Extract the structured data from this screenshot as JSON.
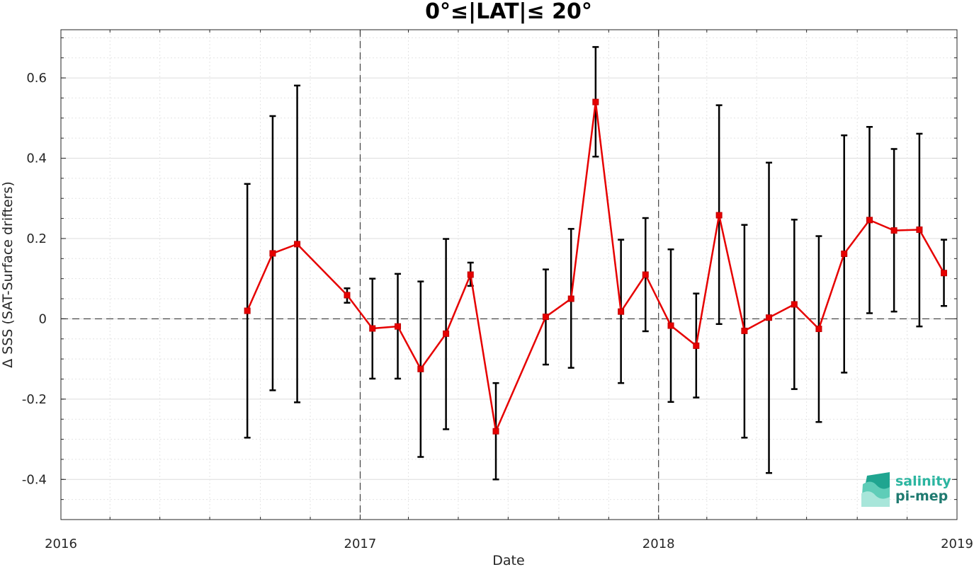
{
  "chart_data": {
    "type": "line",
    "title": "0°≤|LAT|≤ 20°",
    "xlabel": "Date",
    "ylabel": "Δ SSS (SAT-Surface drifters)",
    "xlim": [
      "2016-01-01",
      "2019-01-01"
    ],
    "ylim": [
      -0.5,
      0.72
    ],
    "x_ticks": [
      "2016",
      "2017",
      "2018",
      "2019"
    ],
    "y_ticks": [
      -0.4,
      -0.2,
      0,
      0.2,
      0.4,
      0.6
    ],
    "y_tick_labels": [
      "-0.4",
      "-0.2",
      "0",
      "0.2",
      "0.4",
      "0.6"
    ],
    "grid": true,
    "reference_lines": {
      "horizontal_dashed_at": 0,
      "vertical_dashed_at": [
        "2017-01-01",
        "2018-01-01"
      ]
    },
    "line_color": "#e60000",
    "errorbar_color": "#000000",
    "x": [
      "2016-08-16",
      "2016-09-16",
      "2016-10-16",
      "2016-11-16",
      "2016-12-16",
      "2017-01-16",
      "2017-02-16",
      "2017-03-16",
      "2017-04-16",
      "2017-05-16",
      "2017-06-16",
      "2017-08-16",
      "2017-09-16",
      "2017-10-16",
      "2017-11-16",
      "2017-12-16",
      "2018-01-16",
      "2018-02-16",
      "2018-03-16",
      "2018-04-16",
      "2018-05-16",
      "2018-06-16",
      "2018-07-16",
      "2018-08-16",
      "2018-09-16",
      "2018-10-16",
      "2018-11-16",
      "2018-12-16"
    ],
    "y": [
      0.02,
      0.163,
      0.186,
      null,
      0.059,
      -0.024,
      -0.019,
      -0.125,
      -0.037,
      0.11,
      -0.28,
      0.005,
      0.05,
      0.54,
      0.018,
      0.11,
      -0.017,
      -0.067,
      0.258,
      -0.03,
      0.003,
      0.036,
      -0.025,
      0.162,
      0.246,
      0.22,
      0.222,
      0.114
    ],
    "y_low": [
      -0.296,
      -0.178,
      -0.208,
      null,
      0.04,
      -0.149,
      -0.149,
      -0.344,
      -0.275,
      0.082,
      -0.4,
      -0.114,
      -0.122,
      0.404,
      -0.16,
      -0.031,
      -0.207,
      -0.196,
      -0.013,
      -0.296,
      -0.384,
      -0.175,
      -0.257,
      -0.134,
      0.014,
      0.018,
      -0.019,
      0.032
    ],
    "y_high": [
      0.336,
      0.505,
      0.581,
      null,
      0.076,
      0.1,
      0.112,
      0.093,
      0.199,
      0.14,
      -0.16,
      0.123,
      0.224,
      0.677,
      0.197,
      0.251,
      0.173,
      0.063,
      0.532,
      0.234,
      0.389,
      0.247,
      0.206,
      0.457,
      0.478,
      0.423,
      0.461,
      0.197
    ]
  },
  "logo": {
    "line1": "salinity",
    "line2": "pi-mep",
    "color1": "#2bb5a0",
    "color2": "#1f7a70"
  }
}
